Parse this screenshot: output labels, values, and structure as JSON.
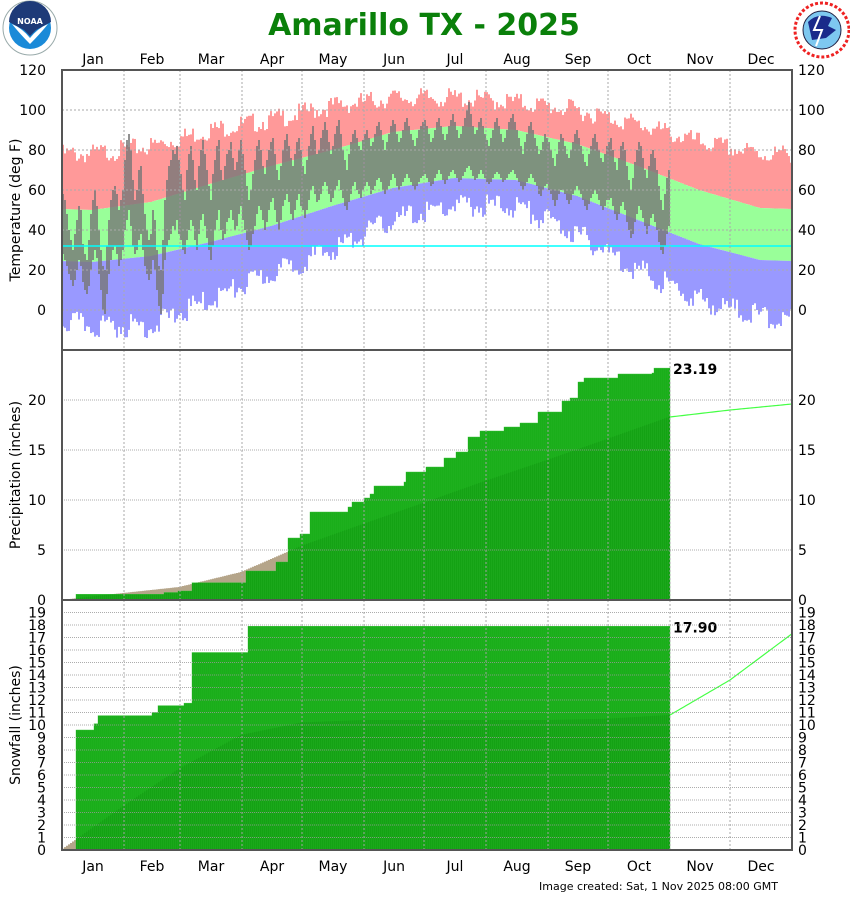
{
  "title": "Amarillo TX - 2025",
  "footer": "Image created: Sat, 1 Nov 2025 08:00 GMT",
  "logos": {
    "left": "NOAA",
    "right": "National Weather Service"
  },
  "colors": {
    "title": "#0a800a",
    "record_high": "#ff9999",
    "normal_range": "#99ff99",
    "record_low": "#9999ff",
    "observed_temperature": "#777777",
    "freezing_line": "#00ffff",
    "observed_cumulative": "#11a811",
    "normal_cumulative_below_observed": "#0c8c0c",
    "normal_deficit": "#b5a58a",
    "normal_projection": "#44ff44"
  },
  "chart_data": [
    {
      "type": "bar",
      "ylabel": "Temperature (deg F)",
      "ylim": [
        -20,
        120
      ],
      "y_ticks": [
        "0",
        "20",
        "40",
        "60",
        "80",
        "100",
        "120"
      ],
      "x_tick_labels": [
        "Jan",
        "Feb",
        "Mar",
        "Apr",
        "May",
        "Jun",
        "Jul",
        "Aug",
        "Sep",
        "Oct",
        "Nov",
        "Dec"
      ],
      "grid": true,
      "freezing_line": 32,
      "observed_highs": [
        58,
        55,
        48,
        40,
        35,
        30,
        38,
        45,
        52,
        50,
        33,
        28,
        25,
        35,
        48,
        55,
        60,
        52,
        40,
        30,
        22,
        20,
        32,
        45,
        55,
        60,
        62,
        58,
        50,
        55,
        60,
        75,
        85,
        88,
        80,
        65,
        55,
        60,
        70,
        72,
        58,
        48,
        40,
        35,
        38,
        50,
        45,
        30,
        22,
        20,
        35,
        55,
        65,
        72,
        75,
        80,
        78,
        82,
        75,
        68,
        60,
        55,
        70,
        78,
        82,
        75,
        65,
        60,
        72,
        80,
        85,
        78,
        70,
        62,
        55,
        68,
        75,
        82,
        85,
        70,
        65,
        72,
        78,
        80,
        84,
        76,
        70,
        74,
        80,
        85,
        78,
        70,
        62,
        55,
        60,
        68,
        75,
        82,
        85,
        80,
        72,
        68,
        75,
        80,
        84,
        86,
        78,
        70,
        65,
        72,
        80,
        85,
        88,
        82,
        76,
        72,
        78,
        84,
        86,
        80,
        72,
        68,
        75,
        82,
        88,
        92,
        85,
        78,
        80,
        86,
        90,
        94,
        90,
        84,
        78,
        82,
        88,
        92,
        95,
        88,
        80,
        75,
        70,
        78,
        84,
        88,
        90,
        86,
        82,
        80,
        85,
        88,
        90,
        86,
        82,
        84,
        88,
        92,
        94,
        90,
        85,
        80,
        84,
        88,
        92,
        95,
        93,
        88,
        84,
        86,
        90,
        94,
        96,
        92,
        88,
        85,
        82,
        86,
        90,
        92,
        94,
        95,
        92,
        88,
        84,
        86,
        90,
        94,
        96,
        92,
        88,
        85,
        88,
        92,
        95,
        98,
        94,
        90,
        86,
        88,
        92,
        96,
        100,
        104,
        98,
        92,
        88,
        90,
        94,
        96,
        92,
        88,
        85,
        82,
        86,
        90,
        94,
        96,
        92,
        88,
        84,
        86,
        90,
        94,
        96,
        98,
        94,
        90,
        86,
        82,
        78,
        84,
        88,
        92,
        94,
        90,
        86,
        82,
        78,
        80,
        84,
        88,
        86,
        84,
        80,
        76,
        72,
        78,
        84,
        88,
        86,
        82,
        78,
        76,
        80,
        84,
        88,
        90,
        86,
        82,
        78,
        74,
        72,
        78,
        82,
        86,
        88,
        84,
        80,
        76,
        74,
        78,
        82,
        84,
        86,
        80,
        74,
        70,
        76,
        82,
        84,
        80,
        72,
        65,
        60,
        66,
        74,
        80,
        84,
        82,
        76,
        70,
        66,
        72,
        78,
        80,
        76,
        70,
        62,
        55,
        50,
        58,
        66,
        70
      ],
      "observed_lows": [
        28,
        25,
        22,
        18,
        15,
        12,
        15,
        20,
        25,
        22,
        14,
        10,
        8,
        12,
        20,
        25,
        30,
        26,
        18,
        10,
        0,
        -2,
        8,
        18,
        25,
        30,
        32,
        28,
        22,
        25,
        30,
        40,
        45,
        50,
        42,
        32,
        28,
        30,
        35,
        38,
        30,
        22,
        18,
        15,
        18,
        25,
        20,
        10,
        2,
        -2,
        8,
        25,
        32,
        35,
        38,
        42,
        40,
        45,
        38,
        35,
        30,
        28,
        35,
        40,
        45,
        42,
        35,
        30,
        38,
        45,
        48,
        42,
        36,
        30,
        25,
        32,
        40,
        45,
        50,
        40,
        35,
        38,
        44,
        46,
        50,
        45,
        40,
        42,
        48,
        52,
        45,
        40,
        35,
        30,
        32,
        38,
        42,
        48,
        52,
        50,
        45,
        40,
        44,
        50,
        54,
        56,
        50,
        44,
        40,
        45,
        52,
        55,
        58,
        54,
        48,
        45,
        50,
        55,
        58,
        52,
        50,
        46,
        50,
        55,
        60,
        62,
        58,
        54,
        55,
        58,
        62,
        64,
        62,
        58,
        54,
        56,
        60,
        62,
        65,
        60,
        56,
        52,
        50,
        54,
        58,
        62,
        64,
        60,
        58,
        56,
        60,
        62,
        64,
        62,
        58,
        60,
        62,
        65,
        66,
        64,
        60,
        58,
        60,
        62,
        65,
        68,
        66,
        62,
        60,
        62,
        64,
        66,
        68,
        66,
        64,
        62,
        60,
        62,
        64,
        66,
        67,
        68,
        66,
        64,
        62,
        63,
        66,
        68,
        70,
        68,
        65,
        63,
        65,
        67,
        69,
        70,
        68,
        66,
        64,
        65,
        67,
        69,
        71,
        72,
        70,
        67,
        65,
        66,
        68,
        70,
        68,
        66,
        64,
        63,
        64,
        66,
        68,
        69,
        68,
        66,
        64,
        65,
        66,
        68,
        69,
        70,
        68,
        66,
        64,
        62,
        60,
        62,
        64,
        66,
        68,
        66,
        64,
        62,
        58,
        57,
        60,
        62,
        63,
        60,
        58,
        55,
        52,
        55,
        58,
        60,
        60,
        58,
        55,
        53,
        55,
        58,
        60,
        62,
        60,
        58,
        55,
        52,
        50,
        53,
        56,
        58,
        60,
        58,
        55,
        52,
        50,
        52,
        55,
        55,
        56,
        52,
        48,
        45,
        48,
        52,
        54,
        50,
        44,
        40,
        36,
        38,
        44,
        48,
        52,
        50,
        46,
        42,
        38,
        42,
        46,
        48,
        44,
        40,
        34,
        30,
        28,
        32,
        38,
        42
      ],
      "normal_high_monthly": [
        50,
        54,
        63,
        72,
        80,
        89,
        92,
        90,
        83,
        72,
        60,
        51
      ],
      "normal_low_monthly": [
        24,
        27,
        34,
        42,
        52,
        61,
        66,
        65,
        57,
        45,
        33,
        25
      ],
      "record_high_monthly": [
        78,
        82,
        90,
        95,
        102,
        106,
        106,
        104,
        100,
        93,
        84,
        78
      ],
      "record_low_monthly": [
        -8,
        -8,
        5,
        18,
        30,
        45,
        52,
        52,
        38,
        20,
        5,
        -3
      ]
    },
    {
      "type": "area",
      "ylabel": "Precipitation (inches)",
      "ylim": [
        0,
        25
      ],
      "y_ticks": [
        "0",
        "5",
        "10",
        "15",
        "20"
      ],
      "x_tick_labels": [
        "Jan",
        "Feb",
        "Mar",
        "Apr",
        "May",
        "Jun",
        "Jul",
        "Aug",
        "Sep",
        "Oct",
        "Nov",
        "Dec"
      ],
      "grid": true,
      "observed_steps": [
        [
          1,
          0
        ],
        [
          8,
          0.57
        ],
        [
          52,
          0.75
        ],
        [
          59,
          0.9
        ],
        [
          66,
          1.73
        ],
        [
          93,
          2.9
        ],
        [
          108,
          3.8
        ],
        [
          114,
          6.2
        ],
        [
          120,
          6.6
        ],
        [
          125,
          8.8
        ],
        [
          144,
          9.3
        ],
        [
          146,
          9.8
        ],
        [
          152,
          10.2
        ],
        [
          155,
          10.6
        ],
        [
          157,
          11.4
        ],
        [
          172,
          11.8
        ],
        [
          173,
          12.8
        ],
        [
          183,
          13.3
        ],
        [
          192,
          14.2
        ],
        [
          198,
          14.8
        ],
        [
          204,
          16.3
        ],
        [
          210,
          16.9
        ],
        [
          222,
          17.3
        ],
        [
          230,
          17.7
        ],
        [
          239,
          18.8
        ],
        [
          251,
          19.9
        ],
        [
          255,
          20.2
        ],
        [
          259,
          21.8
        ],
        [
          262,
          22.2
        ],
        [
          279,
          22.6
        ],
        [
          296,
          22.7
        ],
        [
          297,
          23.19
        ]
      ],
      "last_day": 304,
      "total_label": "23.19",
      "normal_cumulative_month_end": [
        0.7,
        1.3,
        2.8,
        5.4,
        7.6,
        9.7,
        11.9,
        14.0,
        16.1,
        18.3,
        19.0,
        19.6
      ]
    },
    {
      "type": "area",
      "ylabel": "Snowfall (inches)",
      "ylim": [
        0,
        20
      ],
      "y_ticks": [
        "0",
        "1",
        "2",
        "3",
        "4",
        "5",
        "6",
        "7",
        "8",
        "9",
        "10",
        "11",
        "12",
        "13",
        "14",
        "15",
        "16",
        "17",
        "18",
        "19"
      ],
      "x_tick_labels": [
        "Jan",
        "Feb",
        "Mar",
        "Apr",
        "May",
        "Jun",
        "Jul",
        "Aug",
        "Sep",
        "Oct",
        "Nov",
        "Dec"
      ],
      "grid": true,
      "observed_steps": [
        [
          1,
          0
        ],
        [
          8,
          9.6
        ],
        [
          17,
          10.1
        ],
        [
          19,
          10.75
        ],
        [
          46,
          11.0
        ],
        [
          49,
          11.55
        ],
        [
          62,
          11.75
        ],
        [
          66,
          15.8
        ],
        [
          94,
          17.9
        ]
      ],
      "last_day": 304,
      "total_label": "17.90",
      "normal_cumulative_month_end": [
        3.5,
        6.5,
        9.2,
        10.2,
        10.4,
        10.4,
        10.4,
        10.4,
        10.5,
        10.8,
        13.6,
        17.3
      ]
    }
  ]
}
